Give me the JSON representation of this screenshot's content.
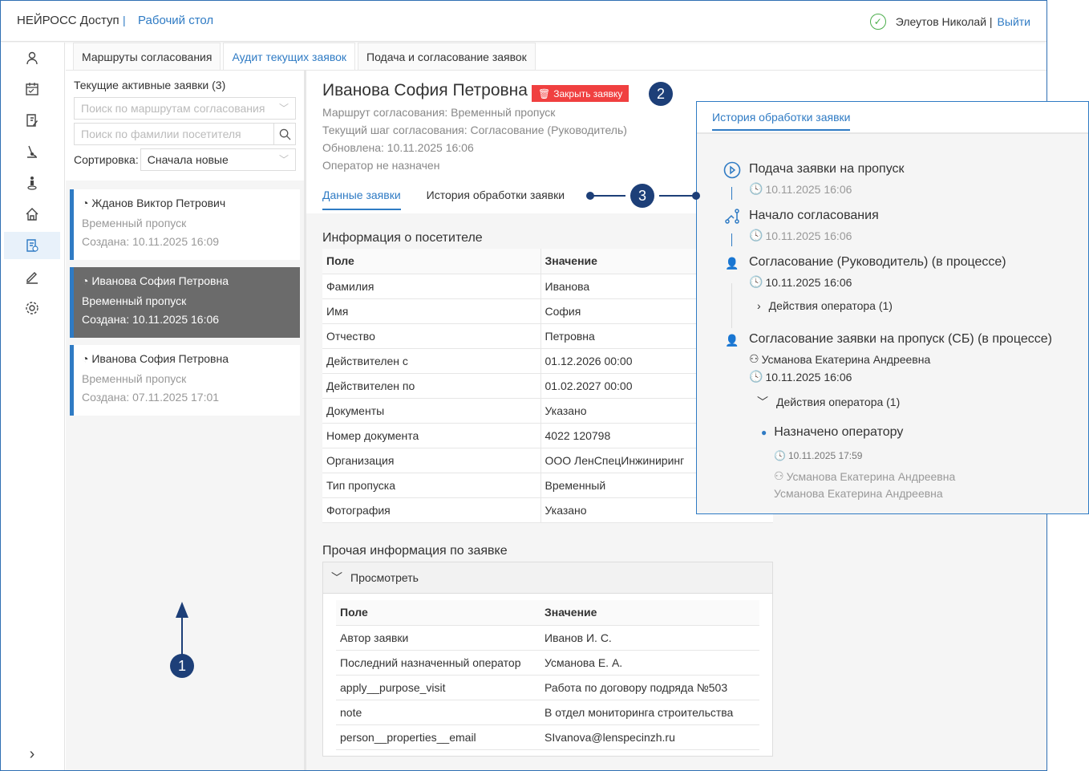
{
  "header": {
    "brand": "НЕЙРОСС Доступ",
    "separator": "|",
    "section": "Рабочий стол",
    "user": "Элеутов Николай |",
    "logout": "Выйти"
  },
  "sidebar": {
    "items": [
      "user-icon",
      "calendar-icon",
      "document-edit-icon",
      "route-icon",
      "person-pin-icon",
      "home-icon",
      "request-audit-icon",
      "pen-icon",
      "gear-icon"
    ],
    "active": 6,
    "expand": "chevron-right-icon"
  },
  "tabs": [
    {
      "label": "Маршруты согласования"
    },
    {
      "label": "Аудит текущих заявок",
      "active": true
    },
    {
      "label": "Подача и согласование заявок"
    }
  ],
  "left": {
    "title": "Текущие активные заявки (3)",
    "route_placeholder": "Поиск по маршрутам согласования",
    "surname_placeholder": "Поиск по фамилии посетителя",
    "sort_label": "Сортировка:",
    "sort_value": "Сначала новые",
    "requests": [
      {
        "name": "Жданов Виктор Петрович",
        "type": "Временный пропуск",
        "created": "Создана: 10.11.2025 16:09"
      },
      {
        "name": "Иванова София Петровна",
        "type": "Временный пропуск",
        "created": "Создана: 10.11.2025 16:06",
        "selected": true
      },
      {
        "name": "Иванова София Петровна",
        "type": "Временный пропуск",
        "created": "Создана: 07.11.2025 17:01"
      }
    ]
  },
  "detail": {
    "title": "Иванова София Петровна",
    "close": "Закрыть заявку",
    "route": "Маршрут согласования: Временный пропуск",
    "step": "Текущий шаг согласования: Согласование (Руководитель)",
    "updated": "Обновлена: 10.11.2025 16:06",
    "operator": "Оператор не назначен",
    "tabs": [
      "Данные заявки",
      "История обработки заявки"
    ],
    "visitor_title": "Информация о посетителе",
    "col_field": "Поле",
    "col_value": "Значение",
    "visitor": [
      [
        "Фамилия",
        "Иванова"
      ],
      [
        "Имя",
        "София"
      ],
      [
        "Отчество",
        "Петровна"
      ],
      [
        "Действителен с",
        "01.12.2026 00:00"
      ],
      [
        "Действителен по",
        "01.02.2027 00:00"
      ],
      [
        "Документы",
        "Указано"
      ],
      [
        "Номер документа",
        "4022 120798"
      ],
      [
        "Организация",
        "ООО ЛенСпецИнжиниринг"
      ],
      [
        "Тип пропуска",
        "Временный"
      ],
      [
        "Фотография",
        "Указано"
      ]
    ],
    "other_title": "Прочая информация по заявке",
    "view": "Просмотреть",
    "other": [
      [
        "Автор заявки",
        "Иванов И. С."
      ],
      [
        "Последний назначенный оператор",
        "Усманова Е. А."
      ],
      [
        "apply__purpose_visit",
        "Работа по договору подряда №503"
      ],
      [
        "note",
        "В отдел мониторинга строительства"
      ],
      [
        "person__properties__email",
        "SIvanova@lenspecinzh.ru"
      ]
    ]
  },
  "history": {
    "tab": "История обработки заявки",
    "s1": {
      "title": "Подача заявки на пропуск",
      "time": "10.11.2025 16:06"
    },
    "s2": {
      "title": "Начало согласования",
      "time": "10.11.2025 16:06"
    },
    "s3": {
      "title": "Согласование (Руководитель) (в процессе)",
      "time": "10.11.2025 16:06",
      "actions": "Действия оператора (1)"
    },
    "s4": {
      "title": "Согласование заявки на пропуск (СБ) (в процессе)",
      "person": "Усманова Екатерина Андреевна",
      "time": "10.11.2025 16:06",
      "actions": "Действия оператора (1)",
      "event": {
        "title": "Назначено оператору",
        "time": "10.11.2025 17:59",
        "person": "Усманова Екатерина Андреевна",
        "note": "Усманова Екатерина Андреевна"
      }
    }
  },
  "annotations": [
    "1",
    "2",
    "3"
  ],
  "colors": {
    "accent": "#2f7bc4",
    "danger": "#f04040",
    "annotation": "#1d3f78",
    "selected": "#6b6b6b"
  }
}
